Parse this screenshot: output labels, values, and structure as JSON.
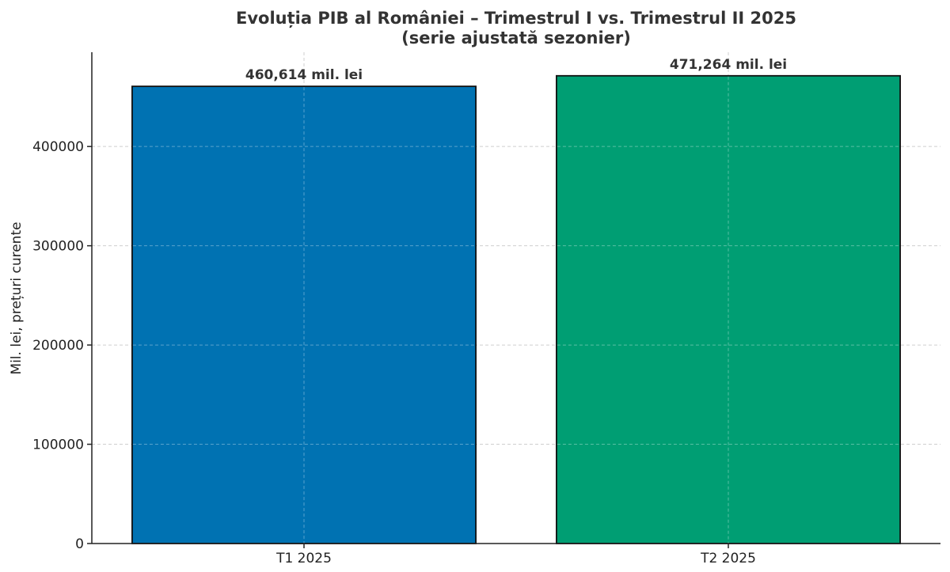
{
  "chart_data": {
    "type": "bar",
    "title": "Evoluția PIB al României – Trimestrul I vs. Trimestrul II 2025",
    "subtitle": "(serie ajustată sezonier)",
    "xlabel": "",
    "ylabel": "Mil. lei, prețuri curente",
    "categories": [
      "T1 2025",
      "T2 2025"
    ],
    "values": [
      460614,
      471264
    ],
    "data_labels": [
      "460,614 mil. lei",
      "471,264 mil. lei"
    ],
    "colors": [
      "#0072B2",
      "#009E73"
    ],
    "ylim": [
      0,
      495000
    ],
    "yticks": [
      0,
      100000,
      200000,
      300000,
      400000
    ],
    "grid": true
  }
}
